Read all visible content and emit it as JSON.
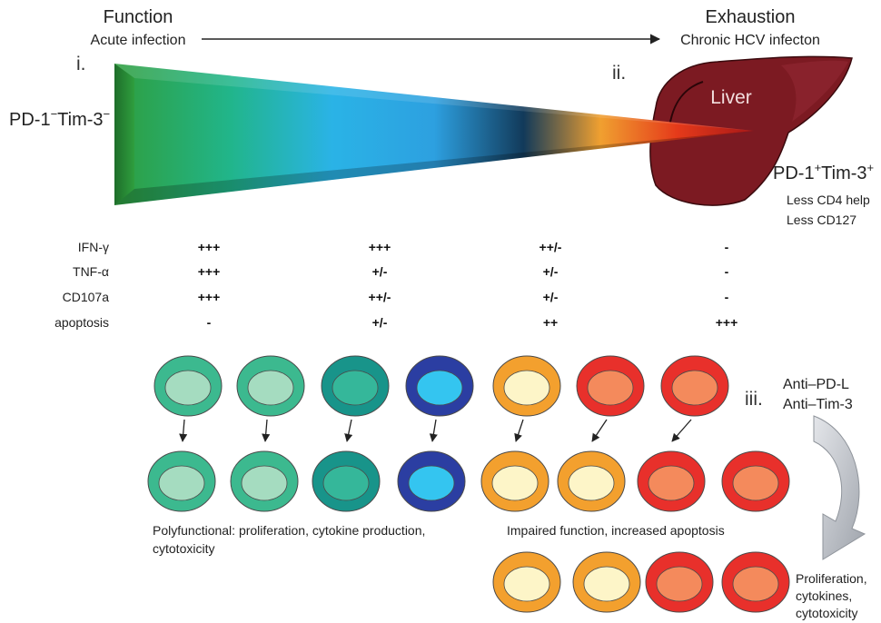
{
  "header": {
    "function_title": "Function",
    "function_subtitle": "Acute infection",
    "exhaustion_title": "Exhaustion",
    "exhaustion_subtitle": "Chronic HCV infecton"
  },
  "labels": {
    "roman_1": "i.",
    "roman_2": "ii.",
    "roman_3": "iii.",
    "liver": "Liver",
    "left_marker": {
      "base1": "PD-1",
      "sup1": "−",
      "base2": "Tim-3",
      "sup2": "−"
    },
    "right_marker": {
      "base1": "PD-1",
      "sup1": "+",
      "base2": "Tim-3",
      "sup2": "+"
    },
    "right_notes": [
      "Less CD4 help",
      "Less CD127"
    ]
  },
  "table": {
    "rows": [
      {
        "label": "IFN-γ",
        "values": [
          "+++",
          "+++",
          "++/-",
          "-"
        ]
      },
      {
        "label": "TNF-α",
        "values": [
          "+++",
          "+/-",
          "+/-",
          "-"
        ]
      },
      {
        "label": "CD107a",
        "values": [
          "+++",
          "++/-",
          "+/-",
          "-"
        ]
      },
      {
        "label": "apoptosis",
        "values": [
          "-",
          "+/-",
          "++",
          "+++"
        ]
      }
    ]
  },
  "cells": {
    "row1": [
      "green",
      "green",
      "teal",
      "blue",
      "orange",
      "red",
      "red"
    ],
    "row2": [
      "green",
      "green",
      "teal",
      "blue",
      "orange",
      "orange",
      "red",
      "red"
    ],
    "row3": [
      "orange",
      "orange",
      "red",
      "red"
    ]
  },
  "captions": {
    "polyfunctional_line1": "Polyfunctional: proliferation, cytokine production,",
    "polyfunctional_line2": "cytotoxicity",
    "impaired": "Impaired function, increased apoptosis"
  },
  "treatment": {
    "lines": [
      "Anti–PD-L",
      "Anti–Tim-3"
    ],
    "outcome": [
      "Proliferation,",
      "cytokines,",
      "cytotoxicity"
    ]
  },
  "colors": {
    "green_outer": "#3cb98f",
    "green_inner": "#a5dcc0",
    "teal_outer": "#18948a",
    "teal_inner": "#35b79a",
    "blue_outer": "#2b3ea2",
    "blue_inner": "#34c5f0",
    "orange_outer": "#f3a02e",
    "orange_inner": "#fdf5c8",
    "red_outer": "#e8302b",
    "red_inner": "#f48a5c",
    "liver": "#7c1a22"
  }
}
